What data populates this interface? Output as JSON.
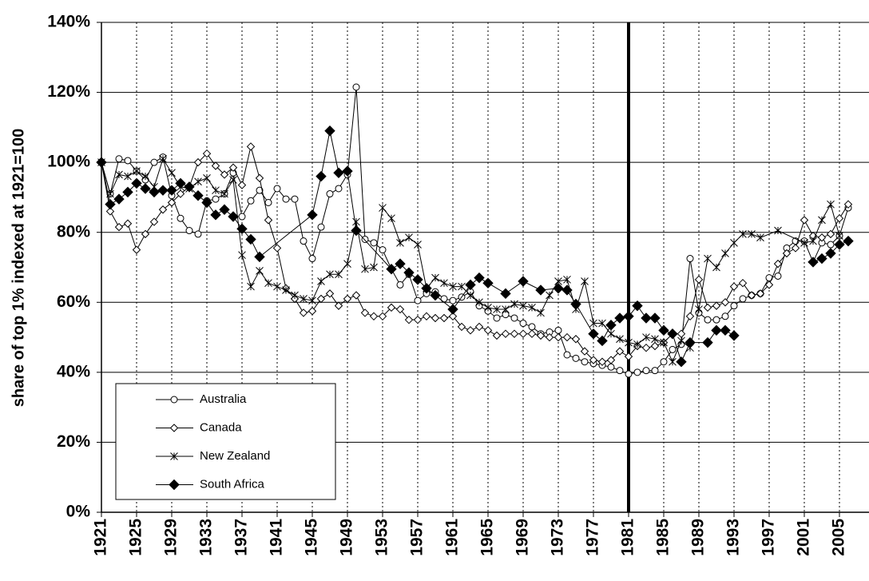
{
  "chart_data": {
    "type": "line",
    "y_label": "share of top 1% indexed at 1921=100",
    "xlim": [
      1921,
      2008
    ],
    "ylim": [
      0,
      140
    ],
    "xticks": [
      1921,
      1925,
      1929,
      1933,
      1937,
      1941,
      1945,
      1949,
      1953,
      1957,
      1961,
      1965,
      1969,
      1973,
      1977,
      1981,
      1985,
      1989,
      1993,
      1997,
      2001,
      2005
    ],
    "yticks": [
      {
        "value": 0,
        "label": "0%"
      },
      {
        "value": 20,
        "label": "20%"
      },
      {
        "value": 40,
        "label": "40%"
      },
      {
        "value": 60,
        "label": "60%"
      },
      {
        "value": 80,
        "label": "80%"
      },
      {
        "value": 100,
        "label": "100%"
      },
      {
        "value": 120,
        "label": "120%"
      },
      {
        "value": 140,
        "label": "140%"
      }
    ],
    "grid": true,
    "reference_line_x": 1981,
    "legend": "lower left",
    "series": [
      {
        "name": "Australia",
        "color": "#000000",
        "marker": "circle",
        "x": [
          1921,
          1922,
          1923,
          1924,
          1925,
          1926,
          1927,
          1928,
          1929,
          1930,
          1931,
          1932,
          1933,
          1934,
          1935,
          1936,
          1937,
          1938,
          1939,
          1940,
          1941,
          1942,
          1943,
          1944,
          1945,
          1946,
          1947,
          1948,
          1949,
          1950,
          1951,
          1952,
          1953,
          1954,
          1955,
          1956,
          1957,
          1958,
          1959,
          1960,
          1961,
          1962,
          1963,
          1964,
          1965,
          1966,
          1967,
          1968,
          1969,
          1970,
          1971,
          1972,
          1973,
          1974,
          1975,
          1976,
          1977,
          1978,
          1979,
          1980,
          1981,
          1982,
          1983,
          1984,
          1985,
          1986,
          1987,
          1988,
          1989,
          1990,
          1991,
          1992,
          1993,
          1994,
          1995,
          1996,
          1997,
          1998,
          1999,
          2000,
          2001,
          2002,
          2003,
          2004,
          2005,
          2006
        ],
        "values": [
          100,
          91,
          101,
          100.5,
          97.5,
          95,
          100,
          101.5,
          90.5,
          84,
          80.5,
          79.5,
          89,
          89.5,
          91,
          97,
          84.5,
          89,
          92,
          88.5,
          92.5,
          89.5,
          89.5,
          77.5,
          72.5,
          81.5,
          91,
          92.5,
          96.5,
          121.5,
          78,
          77,
          75,
          69.5,
          65,
          68,
          60.5,
          62.5,
          63,
          61,
          60.5,
          61.5,
          63,
          59,
          57.5,
          55.5,
          56.5,
          55.5,
          54,
          53,
          51,
          51.5,
          52,
          45,
          44,
          43,
          42.5,
          42,
          41.5,
          40.5,
          39.5,
          40,
          40.5,
          40.5,
          43,
          46.5,
          48,
          72.5,
          57,
          55,
          55,
          56,
          59,
          61,
          62,
          62.5,
          67,
          67.5,
          75.5,
          77.5,
          77.5,
          71.5,
          77,
          76.5,
          79,
          87
        ]
      },
      {
        "name": "Canada",
        "color": "#000000",
        "marker": "diamond",
        "x": [
          1921,
          1922,
          1923,
          1924,
          1925,
          1926,
          1927,
          1928,
          1929,
          1930,
          1931,
          1932,
          1933,
          1934,
          1935,
          1936,
          1937,
          1938,
          1939,
          1940,
          1941,
          1942,
          1943,
          1944,
          1945,
          1946,
          1947,
          1948,
          1949,
          1950,
          1951,
          1952,
          1953,
          1954,
          1955,
          1956,
          1957,
          1958,
          1959,
          1960,
          1961,
          1962,
          1963,
          1964,
          1965,
          1966,
          1967,
          1968,
          1969,
          1970,
          1971,
          1972,
          1973,
          1974,
          1975,
          1976,
          1977,
          1978,
          1979,
          1980,
          1981,
          1982,
          1983,
          1984,
          1985,
          1986,
          1987,
          1988,
          1989,
          1990,
          1991,
          1992,
          1993,
          1994,
          1995,
          1996,
          1997,
          1998,
          1999,
          2000,
          2001,
          2002,
          2003,
          2004,
          2005,
          2006
        ],
        "values": [
          100,
          86,
          81.5,
          82.5,
          75,
          79.5,
          83,
          86.5,
          88.5,
          91,
          93,
          100,
          102.5,
          99,
          96.5,
          98.5,
          93.5,
          104.5,
          95.5,
          83.5,
          75.5,
          64,
          61,
          57,
          57.5,
          61,
          62.5,
          59,
          61,
          62,
          57,
          56,
          56,
          58.5,
          58,
          55,
          55,
          56,
          55.5,
          55.5,
          56,
          53,
          52,
          53,
          52,
          50.5,
          51,
          51,
          51,
          51,
          50.5,
          50,
          50,
          50,
          49.5,
          46,
          43.5,
          43,
          43.5,
          46,
          44.5,
          47.5,
          47,
          47.5,
          48.5,
          51,
          51,
          56,
          66.5,
          58.5,
          59,
          60,
          64.5,
          65.5,
          62,
          62.5,
          65,
          71,
          74,
          75.5,
          83.5,
          79,
          78.5,
          79.5,
          84,
          88
        ]
      },
      {
        "name": "New Zealand",
        "color": "#000000",
        "marker": "star",
        "x": [
          1921,
          1922,
          1923,
          1924,
          1925,
          1926,
          1927,
          1928,
          1929,
          1930,
          1931,
          1932,
          1933,
          1934,
          1935,
          1936,
          1937,
          1938,
          1939,
          1940,
          1941,
          1942,
          1943,
          1944,
          1945,
          1946,
          1947,
          1948,
          1949,
          1950,
          1951,
          1952,
          1953,
          1954,
          1955,
          1956,
          1957,
          1958,
          1959,
          1960,
          1961,
          1962,
          1963,
          1964,
          1965,
          1966,
          1967,
          1968,
          1969,
          1970,
          1971,
          1972,
          1973,
          1974,
          1975,
          1976,
          1977,
          1978,
          1979,
          1980,
          1981,
          1982,
          1983,
          1984,
          1985,
          1986,
          1987,
          1988,
          1989,
          1990,
          1991,
          1992,
          1993,
          1994,
          1995,
          1996,
          1998,
          2001,
          2002,
          2003,
          2004,
          2005
        ],
        "values": [
          100,
          91,
          96.5,
          96,
          97.5,
          96,
          93,
          101,
          97,
          93,
          92.5,
          94.5,
          95.5,
          92,
          91,
          95,
          73.5,
          64.5,
          69,
          65.5,
          64.5,
          63.5,
          62,
          61,
          60.5,
          66,
          68,
          68,
          71,
          83,
          69.5,
          70,
          87,
          84,
          77,
          78.5,
          76.5,
          64,
          67,
          65.5,
          64.5,
          64.5,
          62,
          60,
          58.5,
          58,
          58,
          59.5,
          59,
          58.5,
          57,
          62,
          66,
          66.5,
          58,
          66,
          54,
          54,
          51,
          49.5,
          48.5,
          48,
          50,
          49.5,
          48.5,
          43,
          49,
          47,
          58,
          72.5,
          70,
          74,
          77,
          79.5,
          79.5,
          78.5,
          80.5,
          77,
          77.5,
          83.5,
          88,
          79
        ]
      },
      {
        "name": "South Africa",
        "color": "#000000",
        "marker": "diamond-filled",
        "x": [
          1921,
          1922,
          1923,
          1924,
          1925,
          1926,
          1927,
          1928,
          1929,
          1930,
          1931,
          1932,
          1933,
          1934,
          1935,
          1936,
          1937,
          1938,
          1939,
          1945,
          1946,
          1947,
          1948,
          1949,
          1950,
          1954,
          1955,
          1956,
          1957,
          1958,
          1959,
          1961,
          1963,
          1964,
          1965,
          1967,
          1969,
          1971,
          1973,
          1974,
          1975,
          1977,
          1978,
          1979,
          1980,
          1981,
          1982,
          1983,
          1984,
          1985,
          1986,
          1987,
          1988,
          1990,
          1991,
          1992,
          1993,
          1994,
          2002,
          2003,
          2004,
          2005,
          2006
        ],
        "values": [
          100,
          88,
          89.5,
          91.5,
          94,
          92.5,
          91.5,
          92,
          92,
          94,
          93,
          90.5,
          88.5,
          85,
          86.5,
          84.5,
          81,
          78,
          73,
          85,
          96,
          109,
          97,
          97.5,
          80.5,
          69.5,
          71,
          68.5,
          66.5,
          64,
          62,
          58,
          65,
          67,
          65.5,
          62.5,
          66,
          63.5,
          64,
          63.5,
          59.5,
          51,
          49,
          53.5,
          55.5,
          56,
          59,
          55.5,
          55.5,
          52,
          51,
          43,
          48.5,
          48.5,
          52,
          52,
          50.5,
          null,
          71.5,
          72.5,
          74,
          76.5,
          77.5
        ]
      }
    ]
  }
}
